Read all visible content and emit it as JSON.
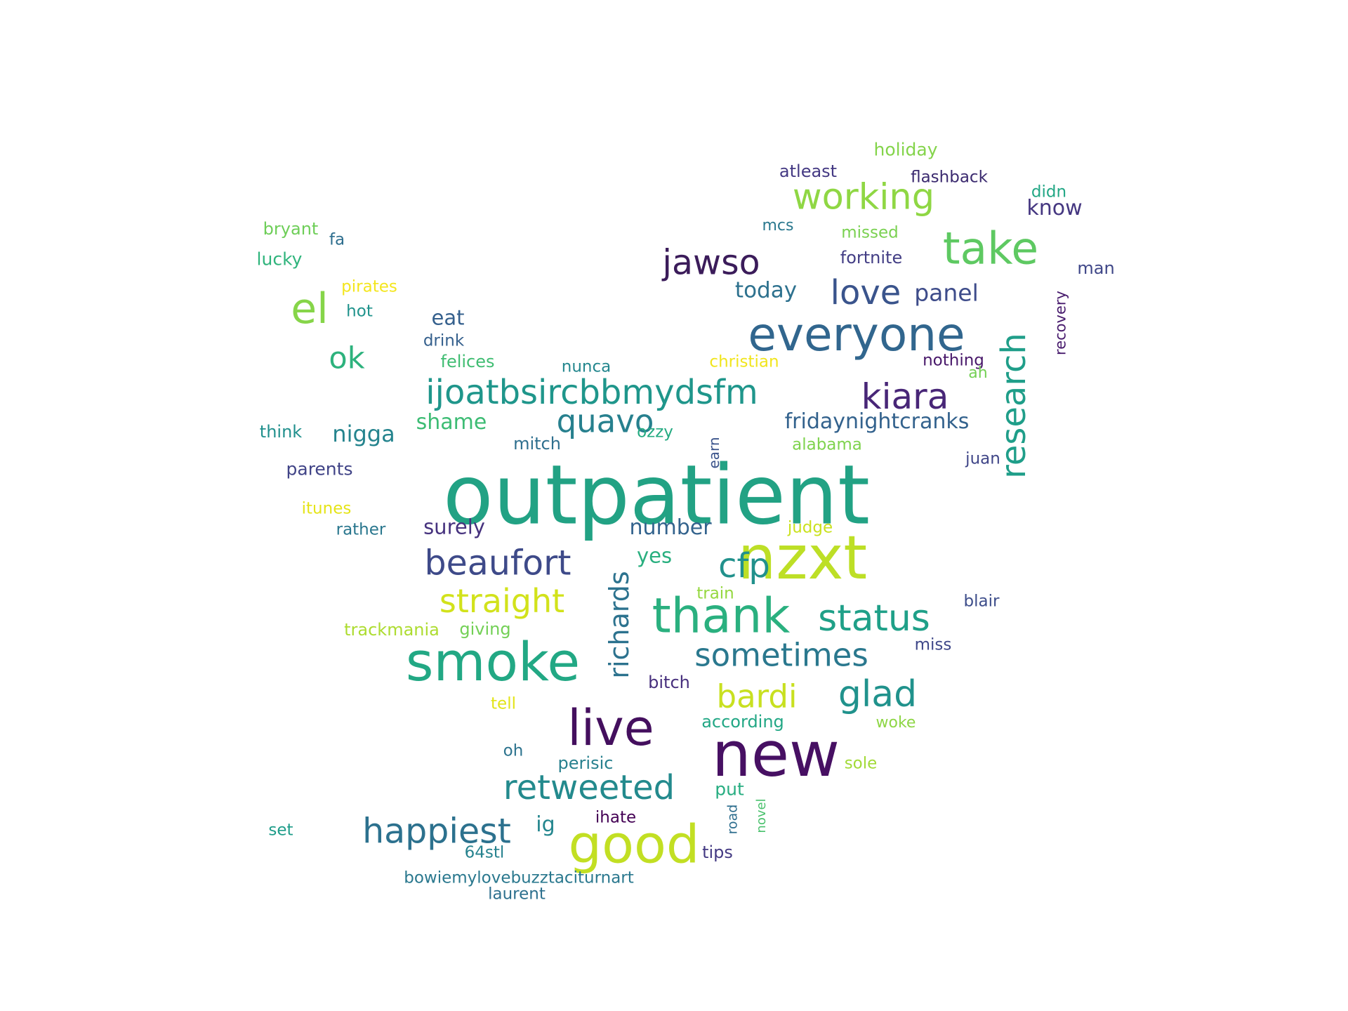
{
  "words": [
    {
      "text": "outpatient",
      "color": "#22a284"
    },
    {
      "text": "nzxt",
      "color": "#bddf26"
    },
    {
      "text": "new",
      "color": "#471063"
    },
    {
      "text": "smoke",
      "color": "#22a884"
    },
    {
      "text": "live",
      "color": "#440f5e"
    },
    {
      "text": "good",
      "color": "#c2df23"
    },
    {
      "text": "thank",
      "color": "#2ab07f"
    },
    {
      "text": "everyone",
      "color": "#31668e"
    },
    {
      "text": "take",
      "color": "#5ec962"
    },
    {
      "text": "el",
      "color": "#86d549"
    },
    {
      "text": "research",
      "color": "#1f9e89"
    },
    {
      "text": "ijoatbsircbbmydsfm",
      "color": "#1f968b"
    },
    {
      "text": "working",
      "color": "#8fd744"
    },
    {
      "text": "jawso",
      "color": "#3b1c5a"
    },
    {
      "text": "quavo",
      "color": "#27808e"
    },
    {
      "text": "beaufort",
      "color": "#3e4a89"
    },
    {
      "text": "richards",
      "color": "#2c728e"
    },
    {
      "text": "kiara",
      "color": "#482677"
    },
    {
      "text": "cfp",
      "color": "#21918c"
    },
    {
      "text": "straight",
      "color": "#d2e21b"
    },
    {
      "text": "status",
      "color": "#1fa088"
    },
    {
      "text": "sometimes",
      "color": "#2a788e"
    },
    {
      "text": "happiest",
      "color": "#2c718e"
    },
    {
      "text": "retweeted",
      "color": "#238a8d"
    },
    {
      "text": "glad",
      "color": "#20928c"
    },
    {
      "text": "bardi",
      "color": "#c8e020"
    },
    {
      "text": "love",
      "color": "#3a548c"
    },
    {
      "text": "ok",
      "color": "#2db27d"
    },
    {
      "text": "panel",
      "color": "#3e4c8a"
    },
    {
      "text": "today",
      "color": "#2d718e"
    },
    {
      "text": "fridaynightcranks",
      "color": "#33628d"
    },
    {
      "text": "nigga",
      "color": "#25848e"
    },
    {
      "text": "eat",
      "color": "#35608d"
    },
    {
      "text": "shame",
      "color": "#3dbc74"
    },
    {
      "text": "surely",
      "color": "#46327e"
    },
    {
      "text": "number",
      "color": "#33638d"
    },
    {
      "text": "yes",
      "color": "#29af7f"
    },
    {
      "text": "know",
      "color": "#453781"
    },
    {
      "text": "ig",
      "color": "#24868e"
    },
    {
      "text": "put",
      "color": "#27ad81"
    },
    {
      "text": "holiday",
      "color": "#84d44b"
    },
    {
      "text": "atleast",
      "color": "#443983"
    },
    {
      "text": "flashback",
      "color": "#3b2a6f"
    },
    {
      "text": "didn",
      "color": "#22a785"
    },
    {
      "text": "bryant",
      "color": "#6ece58"
    },
    {
      "text": "fa",
      "color": "#2e6e8e"
    },
    {
      "text": "mcs",
      "color": "#2a788e"
    },
    {
      "text": "missed",
      "color": "#7ad151"
    },
    {
      "text": "lucky",
      "color": "#2fb47c"
    },
    {
      "text": "fortnite",
      "color": "#433e85"
    },
    {
      "text": "man",
      "color": "#3f4788"
    },
    {
      "text": "pirates",
      "color": "#f4e61e"
    },
    {
      "text": "hot",
      "color": "#20938c"
    },
    {
      "text": "recovery",
      "color": "#481b6d"
    },
    {
      "text": "drink",
      "color": "#35608d"
    },
    {
      "text": "felices",
      "color": "#40bd72"
    },
    {
      "text": "nunca",
      "color": "#24878e"
    },
    {
      "text": "christian",
      "color": "#f1e51d"
    },
    {
      "text": "nothing",
      "color": "#48186a"
    },
    {
      "text": "ah",
      "color": "#74d055"
    },
    {
      "text": "think",
      "color": "#21908d"
    },
    {
      "text": "mitch",
      "color": "#2e6f8e"
    },
    {
      "text": "ozzy",
      "color": "#25ab82"
    },
    {
      "text": "earn",
      "color": "#3a538b"
    },
    {
      "text": "alabama",
      "color": "#7fd34e"
    },
    {
      "text": "juan",
      "color": "#404688"
    },
    {
      "text": "parents",
      "color": "#414487"
    },
    {
      "text": "itunes",
      "color": "#e5e419"
    },
    {
      "text": "rather",
      "color": "#2a778e"
    },
    {
      "text": "judge",
      "color": "#cae11f"
    },
    {
      "text": "train",
      "color": "#95d840"
    },
    {
      "text": "blair",
      "color": "#3d4d8a"
    },
    {
      "text": "trackmania",
      "color": "#addc30"
    },
    {
      "text": "giving",
      "color": "#73d056"
    },
    {
      "text": "miss",
      "color": "#3f4889"
    },
    {
      "text": "bitch",
      "color": "#472f7d"
    },
    {
      "text": "tell",
      "color": "#e2e418"
    },
    {
      "text": "according",
      "color": "#22a785"
    },
    {
      "text": "woke",
      "color": "#8ed645"
    },
    {
      "text": "oh",
      "color": "#2c738e"
    },
    {
      "text": "perisic",
      "color": "#27808e"
    },
    {
      "text": "sole",
      "color": "#a2da37"
    },
    {
      "text": "novel",
      "color": "#4ac16d"
    },
    {
      "text": "road",
      "color": "#2e6e8e"
    },
    {
      "text": "ihate",
      "color": "#440154"
    },
    {
      "text": "set",
      "color": "#1e9c89"
    },
    {
      "text": "64stl",
      "color": "#26828e"
    },
    {
      "text": "tips",
      "color": "#443a83"
    },
    {
      "text": "bowiemylovebuzztaciturnart",
      "color": "#2a788e"
    },
    {
      "text": "laurent",
      "color": "#2d708e"
    }
  ]
}
